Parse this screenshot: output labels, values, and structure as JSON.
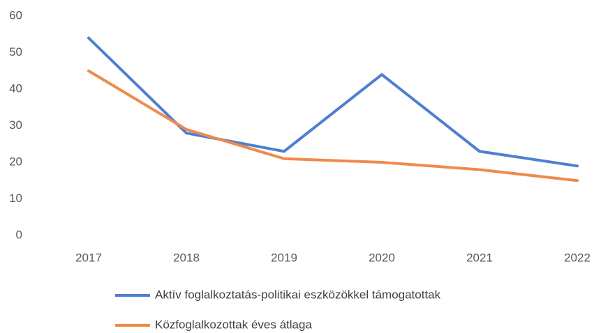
{
  "chart_data": {
    "type": "line",
    "categories": [
      "2017",
      "2018",
      "2019",
      "2020",
      "2021",
      "2022"
    ],
    "series": [
      {
        "name": "Aktív foglalkoztatás-politikai eszközökkel támogatottak",
        "color": "#4f7fd0",
        "values": [
          54,
          28,
          23,
          44,
          23,
          19
        ]
      },
      {
        "name": "Közfoglalkozottak éves átlaga",
        "color": "#f08a4b",
        "values": [
          45,
          29,
          21,
          20,
          18,
          15
        ]
      }
    ],
    "ylim": [
      0,
      60
    ],
    "yticks": [
      0,
      10,
      20,
      30,
      40,
      50,
      60
    ],
    "grid": false,
    "legend": "bottom"
  }
}
